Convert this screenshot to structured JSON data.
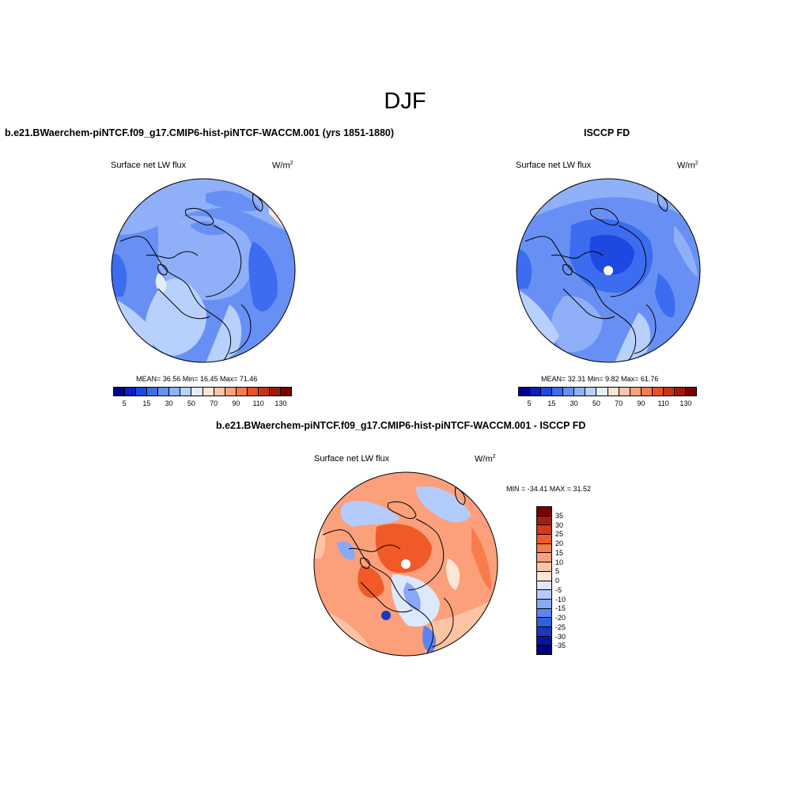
{
  "title": "DJF",
  "panels": {
    "model": {
      "title": "b.e21.BWaerchem-piNTCF.f09_g17.CMIP6-hist-piNTCF-WACCM.001 (yrs 1851-1880)",
      "variable": "Surface net LW flux",
      "units": "W/m",
      "units_sup": "2",
      "stats": "MEAN=  36.56  Min=  16.45  Max=  71.46",
      "mean": 36.56,
      "min": 16.45,
      "max": 71.46
    },
    "obs": {
      "title": "ISCCP FD",
      "variable": "Surface net LW flux",
      "units": "W/m",
      "units_sup": "2",
      "stats": "MEAN=  32.31  Min=   9.82  Max=  61.76",
      "mean": 32.31,
      "min": 9.82,
      "max": 61.76
    },
    "diff": {
      "title": "b.e21.BWaerchem-piNTCF.f09_g17.CMIP6-hist-piNTCF-WACCM.001 - ISCCP FD",
      "variable": "Surface net LW flux",
      "units": "W/m",
      "units_sup": "2",
      "stats": "MIN = -34.41 MAX =  31.52",
      "min": -34.41,
      "max": 31.52
    }
  },
  "colorbar_main": {
    "labels": [
      "5",
      "15",
      "30",
      "50",
      "70",
      "90",
      "110",
      "130"
    ],
    "colors": [
      "#00008c",
      "#0a20c0",
      "#1e48e0",
      "#3c6cf0",
      "#6890f4",
      "#8fb0f8",
      "#b8d0fc",
      "#e4ecfc",
      "#fce4d4",
      "#fcc4a8",
      "#fca07c",
      "#f87850",
      "#ec5026",
      "#c83214",
      "#a01a0a",
      "#780000"
    ]
  },
  "colorbar_diff": {
    "labels": [
      "35",
      "30",
      "25",
      "20",
      "15",
      "10",
      "5",
      "0",
      "-5",
      "-10",
      "-15",
      "-20",
      "-25",
      "-30",
      "-35"
    ],
    "colors": [
      "#780000",
      "#a81c0c",
      "#d43a14",
      "#f05a28",
      "#f87c4c",
      "#fca07c",
      "#fcc4a4",
      "#fce6d6",
      "#dce8fc",
      "#b4ccfc",
      "#88a8f8",
      "#5c84f0",
      "#3060e0",
      "#1838c0",
      "#0814a0",
      "#00007c"
    ]
  }
}
